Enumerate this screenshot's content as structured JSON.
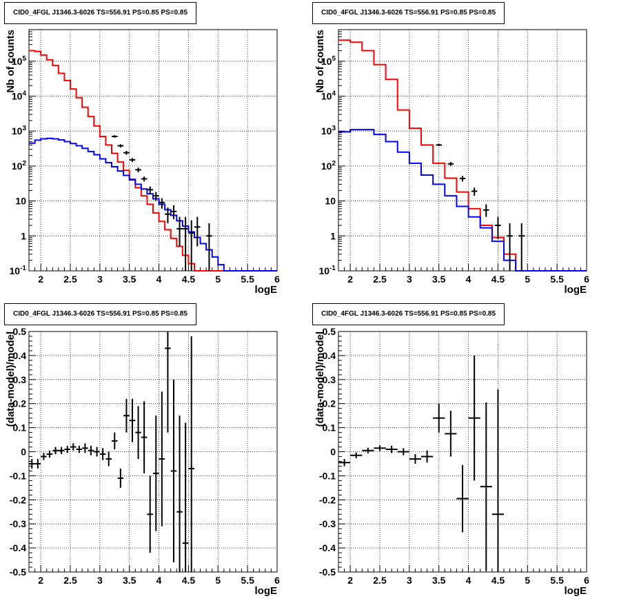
{
  "panels": [
    {
      "id": "tl",
      "title": "CID0_4FGL J1346.3-6026 TS=556.91 PS=0.85 PS=0.85",
      "chart_data": {
        "type": "line",
        "scale": "log",
        "xlabel": "logE",
        "ylabel": "Nb of counts",
        "xlim": [
          1.8,
          6
        ],
        "ylim": [
          0.1,
          800000
        ],
        "x_ticks": [
          "2",
          "2.5",
          "3",
          "3.5",
          "4",
          "4.5",
          "5",
          "5.5",
          "6"
        ],
        "y_ticks": [
          "10^-1",
          "1",
          "10",
          "10^2",
          "10^3",
          "10^4",
          "10^5"
        ],
        "grid": true,
        "bin_edges": [
          1.8,
          1.9,
          2.0,
          2.1,
          2.2,
          2.3,
          2.4,
          2.5,
          2.6,
          2.7,
          2.8,
          2.9,
          3.0,
          3.1,
          3.2,
          3.3,
          3.4,
          3.5,
          3.6,
          3.7,
          3.8,
          3.9,
          4.0,
          4.1,
          4.2,
          4.3,
          4.4,
          4.5,
          4.6,
          4.7,
          4.8,
          4.9,
          5.0,
          5.1,
          5.2,
          5.3,
          5.4,
          5.5,
          5.6,
          5.7,
          5.8,
          5.9,
          6.0
        ],
        "series": [
          {
            "color": "#ff0000",
            "values": [
              200000,
              190000,
              150000,
              110000,
              75000,
              45000,
              28000,
              16000,
              9000,
              4800,
              2600,
              1400,
              700,
              400,
              230,
              130,
              75,
              42,
              24,
              14,
              8,
              4.5,
              2.6,
              1.5,
              0.85,
              0.5,
              0.28,
              0.16,
              0.1,
              0.1,
              0.1,
              0.1,
              0.1,
              0.1,
              0.1,
              0.1,
              0.1,
              0.1,
              0.1,
              0.1,
              0.1,
              0.1
            ]
          },
          {
            "color": "#0000ff",
            "values": [
              450,
              550,
              600,
              620,
              600,
              560,
              500,
              440,
              380,
              320,
              260,
              210,
              160,
              125,
              95,
              72,
              54,
              40,
              30,
              22,
              16,
              11.5,
              8,
              5.6,
              3.9,
              2.7,
              1.9,
              1.3,
              0.9,
              0.6,
              0.4,
              0.25,
              0.15,
              0.1,
              0.1,
              0.1,
              0.1,
              0.1,
              0.1,
              0.1,
              0.1,
              0.1
            ]
          }
        ],
        "data_points": [
          {
            "x": 3.25,
            "y": 700,
            "lo": 650,
            "hi": 760
          },
          {
            "x": 3.35,
            "y": 380,
            "lo": 340,
            "hi": 420
          },
          {
            "x": 3.45,
            "y": 240,
            "lo": 210,
            "hi": 270
          },
          {
            "x": 3.55,
            "y": 150,
            "lo": 130,
            "hi": 170
          },
          {
            "x": 3.65,
            "y": 78,
            "lo": 66,
            "hi": 90
          },
          {
            "x": 3.75,
            "y": 43,
            "lo": 36,
            "hi": 50
          },
          {
            "x": 3.85,
            "y": 21,
            "lo": 16,
            "hi": 26
          },
          {
            "x": 3.95,
            "y": 14,
            "lo": 10,
            "hi": 18
          },
          {
            "x": 4.05,
            "y": 9,
            "lo": 6,
            "hi": 12
          },
          {
            "x": 4.15,
            "y": 4.2,
            "lo": 2.3,
            "hi": 6.5
          },
          {
            "x": 4.25,
            "y": 5,
            "lo": 3,
            "hi": 7.5
          },
          {
            "x": 4.35,
            "y": 1.6,
            "lo": 0.5,
            "hi": 3.5
          },
          {
            "x": 4.45,
            "y": 1.6,
            "lo": 0.1,
            "hi": 3.5
          },
          {
            "x": 4.55,
            "y": 1.2,
            "lo": 0.1,
            "hi": 2.8
          },
          {
            "x": 4.65,
            "y": 1.8,
            "lo": 0.5,
            "hi": 3.5
          },
          {
            "x": 4.85,
            "y": 1,
            "lo": 0.1,
            "hi": 2.3
          }
        ]
      }
    },
    {
      "id": "tr",
      "title": "CID0_4FGL J1346.3-6026 TS=556.91 PS=0.85 PS=0.85",
      "chart_data": {
        "type": "line",
        "scale": "log",
        "xlabel": "logE",
        "ylabel": "Nb of counts",
        "xlim": [
          1.8,
          6
        ],
        "ylim": [
          0.1,
          800000
        ],
        "x_ticks": [
          "2",
          "2.5",
          "3",
          "3.5",
          "4",
          "4.5",
          "5",
          "5.5",
          "6"
        ],
        "y_ticks": [
          "10^-1",
          "1",
          "10",
          "10^2",
          "10^3",
          "10^4",
          "10^5"
        ],
        "grid": true,
        "bin_edges": [
          1.8,
          2.0,
          2.2,
          2.4,
          2.6,
          2.8,
          3.0,
          3.2,
          3.4,
          3.6,
          3.8,
          4.0,
          4.2,
          4.4,
          4.6,
          4.8,
          5.0,
          5.2,
          5.4,
          5.6,
          5.8,
          6.0
        ],
        "series": [
          {
            "color": "#ff0000",
            "values": [
              400000,
              350000,
              200000,
              80000,
              30000,
              4000,
              1200,
              400,
              120,
              45,
              18,
              6,
              2,
              0.9,
              0.3,
              0.1,
              0.1,
              0.1,
              0.1,
              0.1,
              0.1
            ]
          },
          {
            "color": "#0000ff",
            "values": [
              950,
              1100,
              1100,
              800,
              500,
              250,
              120,
              55,
              30,
              14,
              7,
              3.5,
              1.7,
              0.7,
              0.2,
              0.1,
              0.1,
              0.1,
              0.1,
              0.1,
              0.1
            ]
          }
        ],
        "data_points": [
          {
            "x": 3.5,
            "y": 400,
            "lo": 370,
            "hi": 430
          },
          {
            "x": 3.7,
            "y": 115,
            "lo": 100,
            "hi": 130
          },
          {
            "x": 3.9,
            "y": 44,
            "lo": 36,
            "hi": 52
          },
          {
            "x": 4.1,
            "y": 19,
            "lo": 14,
            "hi": 24
          },
          {
            "x": 4.3,
            "y": 5.5,
            "lo": 3.5,
            "hi": 8
          },
          {
            "x": 4.5,
            "y": 2,
            "lo": 0.8,
            "hi": 3.5
          },
          {
            "x": 4.7,
            "y": 1,
            "lo": 0.1,
            "hi": 2.3
          },
          {
            "x": 4.9,
            "y": 1,
            "lo": 0.1,
            "hi": 2.3
          }
        ]
      }
    },
    {
      "id": "bl",
      "title": "CID0_4FGL J1346.3-6026 TS=556.91 PS=0.85 PS=0.85",
      "chart_data": {
        "type": "scatter",
        "scale": "linear",
        "xlabel": "logE",
        "ylabel": "(data-model)/model",
        "xlim": [
          1.8,
          6
        ],
        "ylim": [
          -0.5,
          0.5
        ],
        "x_ticks": [
          "2",
          "2.5",
          "3",
          "3.5",
          "4",
          "4.5",
          "5",
          "5.5",
          "6"
        ],
        "y_ticks": [
          "-0.5",
          "-0.4",
          "-0.3",
          "-0.2",
          "-0.1",
          "0",
          "0.1",
          "0.2",
          "0.3",
          "0.4",
          "0.5"
        ],
        "grid": true,
        "half_width": 0.05,
        "data_points": [
          {
            "x": 1.85,
            "y": -0.05,
            "err": 0.02
          },
          {
            "x": 1.95,
            "y": -0.05,
            "err": 0.02
          },
          {
            "x": 2.05,
            "y": -0.02,
            "err": 0.015
          },
          {
            "x": 2.15,
            "y": -0.01,
            "err": 0.015
          },
          {
            "x": 2.25,
            "y": 0.005,
            "err": 0.015
          },
          {
            "x": 2.35,
            "y": 0.005,
            "err": 0.015
          },
          {
            "x": 2.45,
            "y": 0.01,
            "err": 0.015
          },
          {
            "x": 2.55,
            "y": 0.02,
            "err": 0.015
          },
          {
            "x": 2.65,
            "y": 0.01,
            "err": 0.015
          },
          {
            "x": 2.75,
            "y": 0.015,
            "err": 0.02
          },
          {
            "x": 2.85,
            "y": 0.005,
            "err": 0.02
          },
          {
            "x": 2.95,
            "y": 0.0,
            "err": 0.02
          },
          {
            "x": 3.05,
            "y": -0.01,
            "err": 0.025
          },
          {
            "x": 3.15,
            "y": -0.03,
            "err": 0.03
          },
          {
            "x": 3.25,
            "y": 0.045,
            "err": 0.035
          },
          {
            "x": 3.35,
            "y": -0.11,
            "err": 0.04
          },
          {
            "x": 3.45,
            "y": 0.15,
            "err": 0.07
          },
          {
            "x": 3.55,
            "y": 0.13,
            "err": 0.09
          },
          {
            "x": 3.65,
            "y": 0.08,
            "err": 0.11
          },
          {
            "x": 3.75,
            "y": 0.06,
            "err": 0.15
          },
          {
            "x": 3.85,
            "y": -0.26,
            "err": 0.16
          },
          {
            "x": 3.95,
            "y": -0.09,
            "err": 0.24
          },
          {
            "x": 4.05,
            "y": -0.03,
            "err": 0.28
          },
          {
            "x": 4.15,
            "y": 0.43,
            "err": 0.35
          },
          {
            "x": 4.25,
            "y": -0.08,
            "err": 0.38
          },
          {
            "x": 4.35,
            "y": -0.25,
            "err": 0.4
          },
          {
            "x": 4.45,
            "y": -0.38,
            "err": 0.5
          },
          {
            "x": 4.55,
            "y": -0.07,
            "err": 0.55
          }
        ]
      }
    },
    {
      "id": "br",
      "title": "CID0_4FGL J1346.3-6026 TS=556.91 PS=0.85 PS=0.85",
      "chart_data": {
        "type": "scatter",
        "scale": "linear",
        "xlabel": "logE",
        "ylabel": "(data-model)/model",
        "xlim": [
          1.8,
          6
        ],
        "ylim": [
          -0.5,
          0.5
        ],
        "x_ticks": [
          "2",
          "2.5",
          "3",
          "3.5",
          "4",
          "4.5",
          "5",
          "5.5",
          "6"
        ],
        "y_ticks": [
          "-0.5",
          "-0.4",
          "-0.3",
          "-0.2",
          "-0.1",
          "0",
          "0.1",
          "0.2",
          "0.3",
          "0.4",
          "0.5"
        ],
        "grid": true,
        "half_width": 0.1,
        "data_points": [
          {
            "x": 1.9,
            "y": -0.045,
            "err": 0.015
          },
          {
            "x": 2.1,
            "y": -0.015,
            "err": 0.012
          },
          {
            "x": 2.3,
            "y": 0.005,
            "err": 0.012
          },
          {
            "x": 2.5,
            "y": 0.015,
            "err": 0.012
          },
          {
            "x": 2.7,
            "y": 0.01,
            "err": 0.015
          },
          {
            "x": 2.9,
            "y": 0.0,
            "err": 0.015
          },
          {
            "x": 3.1,
            "y": -0.03,
            "err": 0.02
          },
          {
            "x": 3.3,
            "y": -0.02,
            "err": 0.025
          },
          {
            "x": 3.5,
            "y": 0.14,
            "err": 0.06
          },
          {
            "x": 3.7,
            "y": 0.075,
            "err": 0.095
          },
          {
            "x": 3.9,
            "y": -0.195,
            "err": 0.14
          },
          {
            "x": 4.1,
            "y": 0.14,
            "err": 0.26
          },
          {
            "x": 4.3,
            "y": -0.145,
            "err": 0.35
          },
          {
            "x": 4.5,
            "y": -0.26,
            "err": 0.52
          }
        ]
      }
    }
  ]
}
